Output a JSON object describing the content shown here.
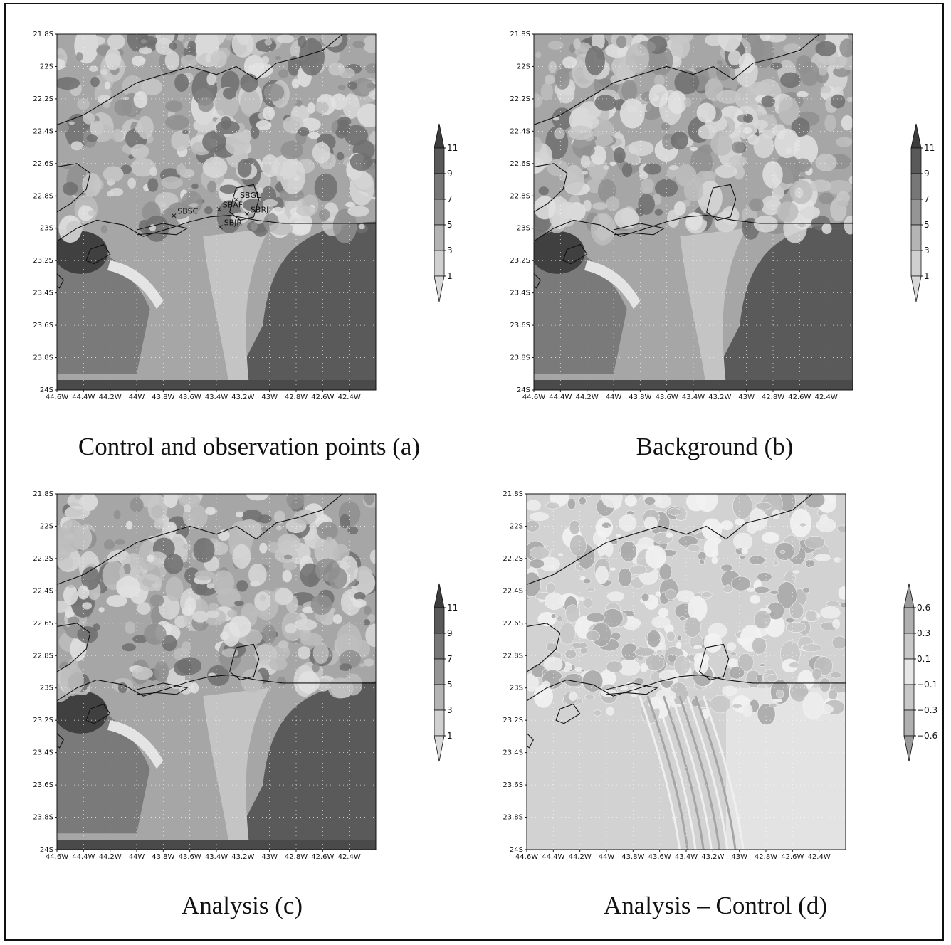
{
  "figure": {
    "panels": [
      {
        "id": "a",
        "caption": "Control and observation points (a)",
        "y_ticks": [
          "21.8S",
          "22S",
          "22.2S",
          "22.4S",
          "22.6S",
          "22.8S",
          "23S",
          "23.2S",
          "23.4S",
          "23.6S",
          "23.8S",
          "24S"
        ],
        "x_ticks": [
          "44.6W",
          "44.4W",
          "44.2W",
          "44W",
          "43.8W",
          "43.6W",
          "43.4W",
          "43.2W",
          "43W",
          "42.8W",
          "42.6W",
          "42.4W"
        ],
        "colorbar": [
          "11",
          "9",
          "7",
          "5",
          "3",
          "1"
        ],
        "colorbar_colors": [
          "#d9d9d9",
          "#d0d0d0",
          "#b4b4b4",
          "#959595",
          "#777777",
          "#595959",
          "#3c3c3c"
        ],
        "observation_points": [
          {
            "label": "SBGL",
            "lon": -43.25,
            "lat": -22.82
          },
          {
            "label": "SBAF",
            "lon": -43.38,
            "lat": -22.88
          },
          {
            "label": "SBRJ",
            "lon": -43.17,
            "lat": -22.91
          },
          {
            "label": "SBSC",
            "lon": -43.72,
            "lat": -22.92
          },
          {
            "label": "SBJR",
            "lon": -43.37,
            "lat": -22.99
          }
        ],
        "field_mean": "high"
      },
      {
        "id": "b",
        "caption": "Background (b)",
        "y_ticks": [
          "21.8S",
          "22S",
          "22.2S",
          "22.4S",
          "22.6S",
          "22.8S",
          "23S",
          "23.2S",
          "23.4S",
          "23.6S",
          "23.8S",
          "24S"
        ],
        "x_ticks": [
          "44.6W",
          "44.4W",
          "44.2W",
          "44W",
          "43.8W",
          "43.6W",
          "43.4W",
          "43.2W",
          "43W",
          "42.8W",
          "42.6W",
          "42.4W"
        ],
        "colorbar": [
          "11",
          "9",
          "7",
          "5",
          "3",
          "1"
        ],
        "colorbar_colors": [
          "#d9d9d9",
          "#d0d0d0",
          "#b4b4b4",
          "#959595",
          "#777777",
          "#595959",
          "#3c3c3c"
        ],
        "observation_points": [],
        "field_mean": "high"
      },
      {
        "id": "c",
        "caption": "Analysis (c)",
        "y_ticks": [
          "21.8S",
          "22S",
          "22.2S",
          "22.4S",
          "22.6S",
          "22.8S",
          "23S",
          "23.2S",
          "23.4S",
          "23.6S",
          "23.8S",
          "24S"
        ],
        "x_ticks": [
          "44.6W",
          "44.4W",
          "44.2W",
          "44W",
          "43.8W",
          "43.6W",
          "43.4W",
          "43.2W",
          "43W",
          "42.8W",
          "42.6W",
          "42.4W"
        ],
        "colorbar": [
          "11",
          "9",
          "7",
          "5",
          "3",
          "1"
        ],
        "colorbar_colors": [
          "#d9d9d9",
          "#d0d0d0",
          "#b4b4b4",
          "#959595",
          "#777777",
          "#595959",
          "#3c3c3c"
        ],
        "observation_points": [],
        "field_mean": "high"
      },
      {
        "id": "d",
        "caption": "Analysis – Control (d)",
        "y_ticks": [
          "21.8S",
          "22S",
          "22.2S",
          "22.4S",
          "22.6S",
          "22.8S",
          "23S",
          "23.2S",
          "23.4S",
          "23.6S",
          "23.8S",
          "24S"
        ],
        "x_ticks": [
          "44.6W",
          "44.4W",
          "44.2W",
          "44W",
          "43.8W",
          "43.6W",
          "43.4W",
          "43.2W",
          "43W",
          "42.8W",
          "42.6W",
          "42.4W"
        ],
        "colorbar": [
          "0.6",
          "0.3",
          "0.1",
          "−0.1",
          "−0.3",
          "−0.6"
        ],
        "colorbar_colors": [
          "#9a9a9a",
          "#b0b0b0",
          "#c8c8c8",
          "#e6e6e6",
          "#c8c8c8",
          "#b0b0b0",
          "#9a9a9a"
        ],
        "observation_points": [],
        "field_mean": "diff"
      }
    ]
  }
}
